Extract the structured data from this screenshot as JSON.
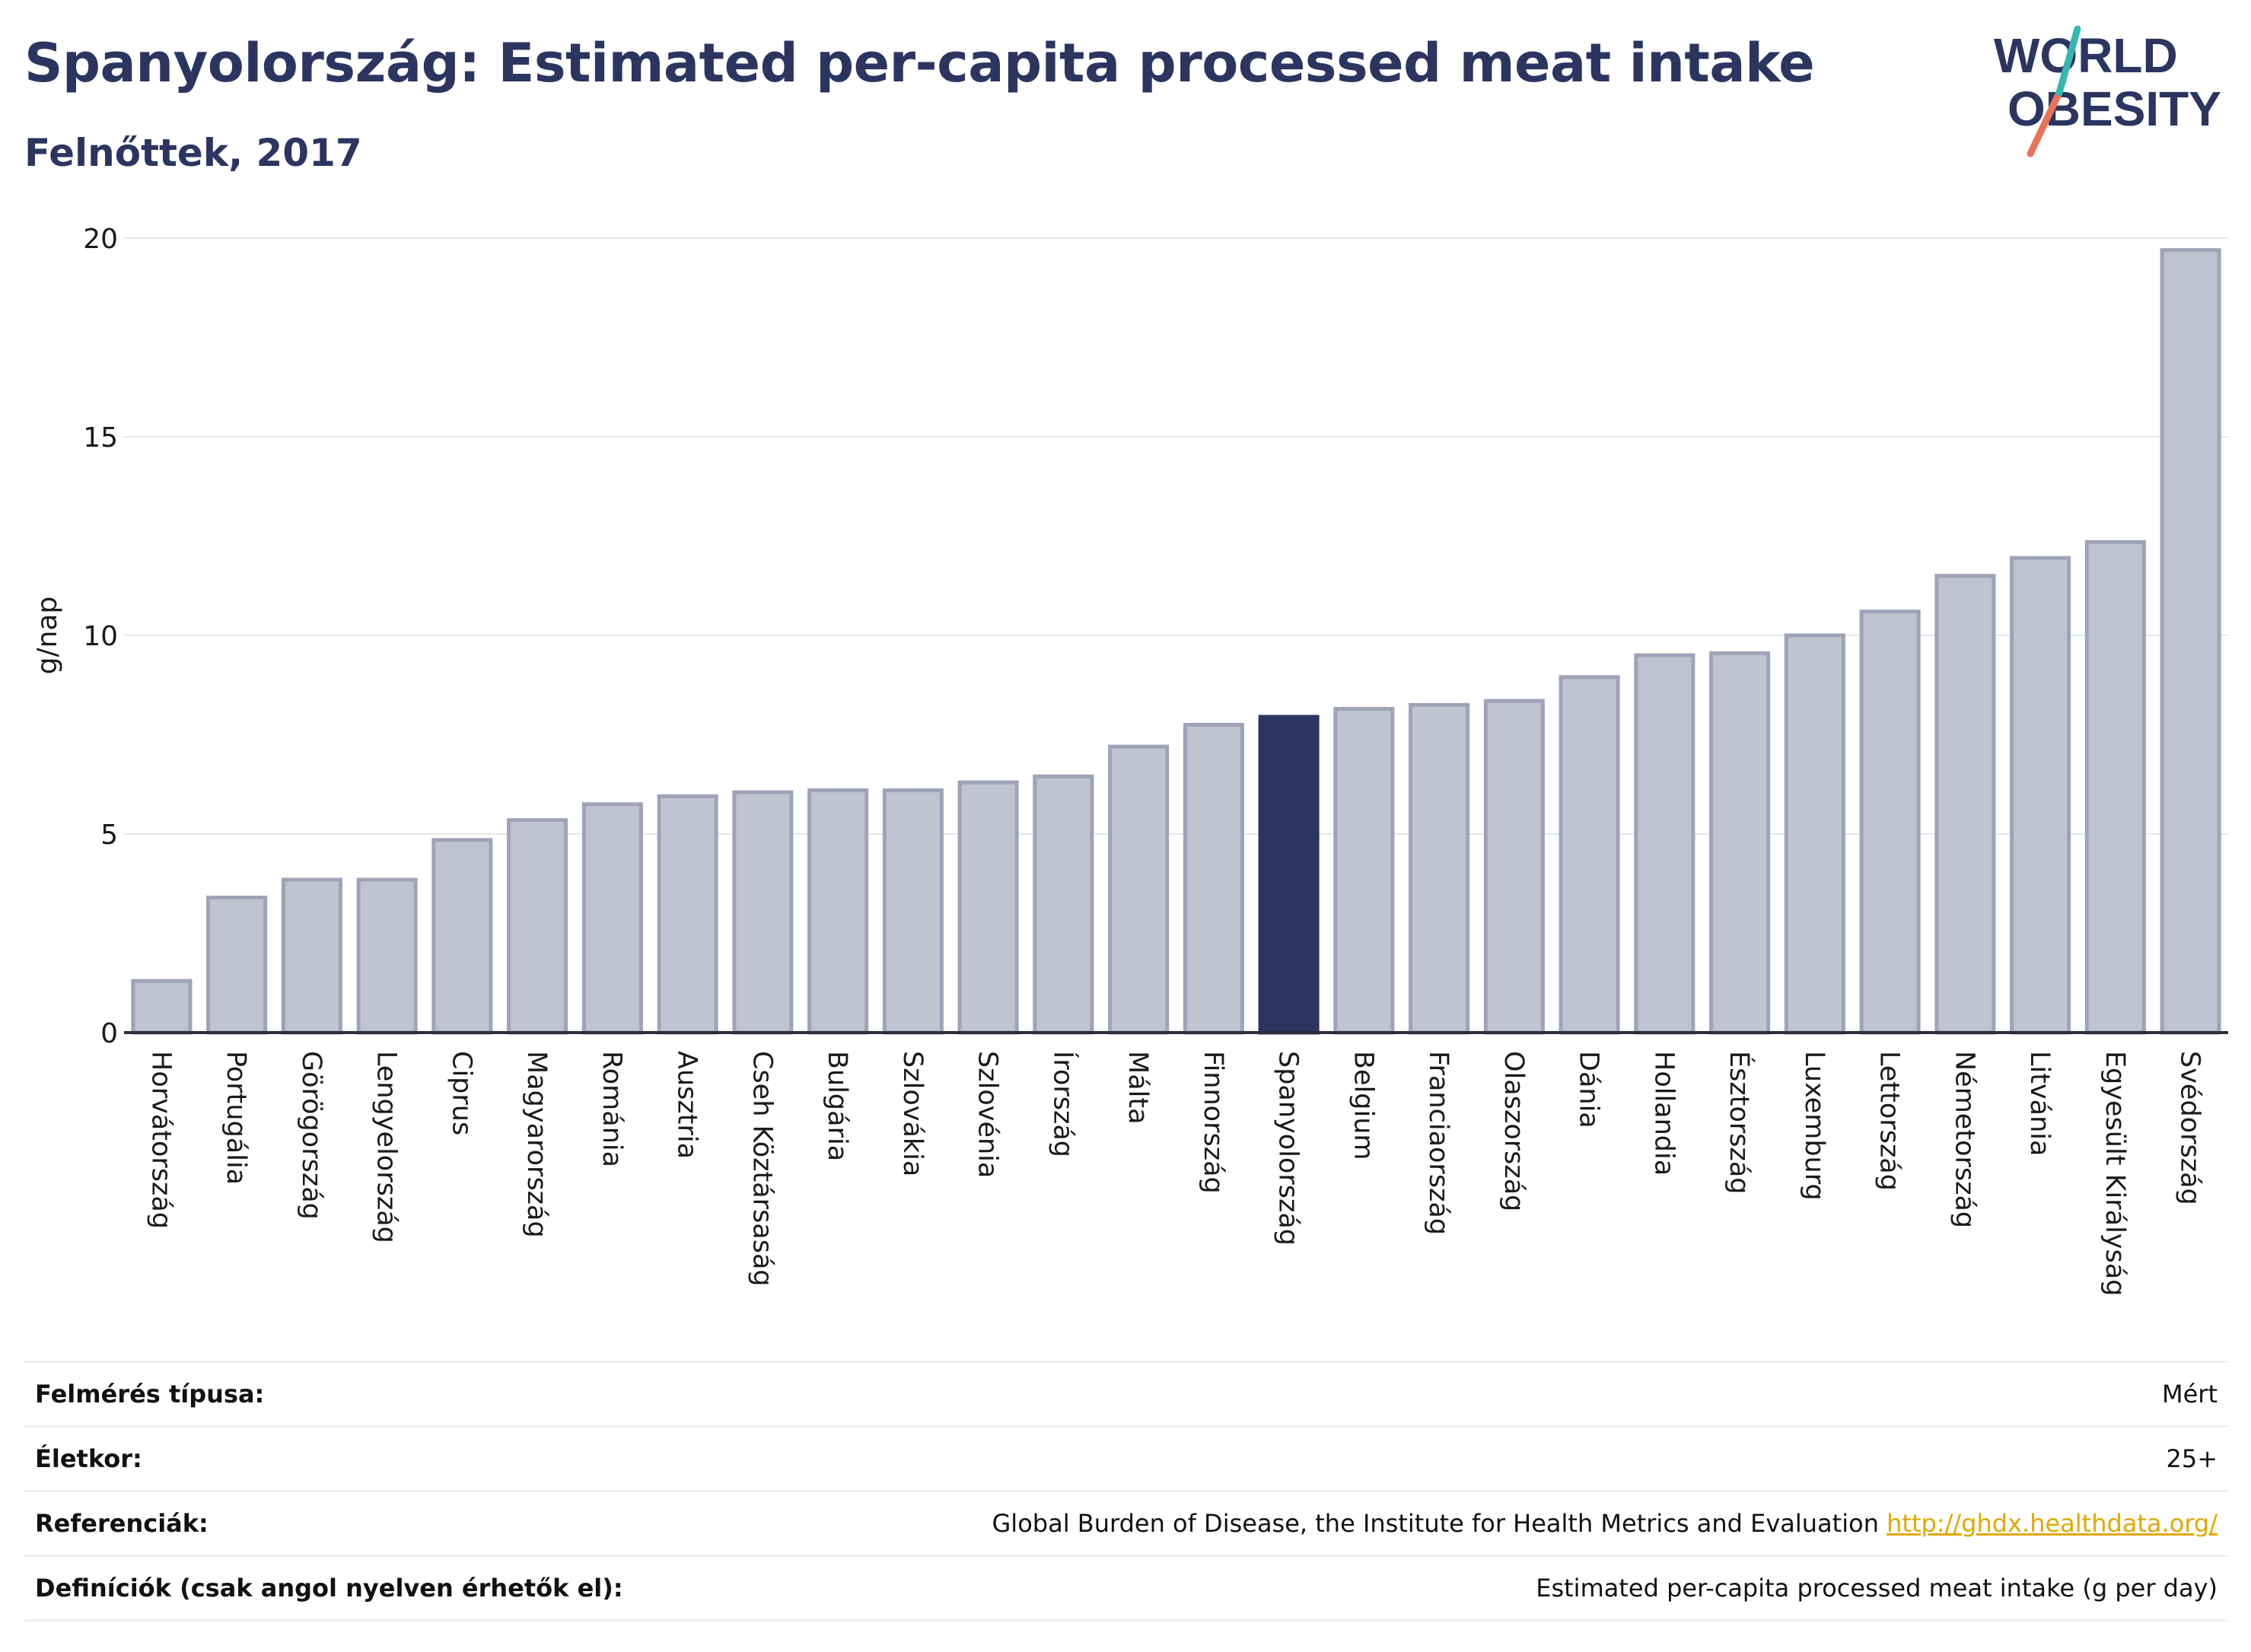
{
  "header": {
    "title": "Spanyolország: Estimated per-capita processed meat intake",
    "subtitle": "Felnőttek, 2017"
  },
  "logo": {
    "text": "WORLD OBESITY",
    "colors": {
      "text": "#2b3560",
      "slash_teal": "#36b6b0",
      "slash_coral": "#e8735a"
    }
  },
  "colors": {
    "bar": "#c0c3d0",
    "bar_border": "#9ea3b8",
    "highlight": "#2b3560",
    "grid": "#e6e7ec",
    "axis": "#2b2f3a"
  },
  "chart_data": {
    "type": "bar",
    "title": "Spanyolország: Estimated per-capita processed meat intake",
    "subtitle": "Felnőttek, 2017",
    "ylabel": "g/nap",
    "ylim": [
      0,
      20
    ],
    "yticks": [
      0,
      5,
      10,
      15,
      20
    ],
    "grid": true,
    "highlight": "Spanyolország",
    "categories": [
      "Horvátország",
      "Portugália",
      "Görögország",
      "Lengyelország",
      "Ciprus",
      "Magyarország",
      "Románia",
      "Ausztria",
      "Cseh Köztársaság",
      "Bulgária",
      "Szlovákia",
      "Szlovénia",
      "Írország",
      "Málta",
      "Finnország",
      "Spanyolország",
      "Belgium",
      "Franciaország",
      "Olaszország",
      "Dánia",
      "Hollandia",
      "Észtország",
      "Luxemburg",
      "Lettország",
      "Németország",
      "Litvánia",
      "Egyesült Királyság",
      "Svédország"
    ],
    "values": [
      1.3,
      3.4,
      3.85,
      3.85,
      4.85,
      5.35,
      5.75,
      5.95,
      6.05,
      6.1,
      6.1,
      6.3,
      6.45,
      7.2,
      7.75,
      7.95,
      8.15,
      8.25,
      8.35,
      8.95,
      9.5,
      9.55,
      10.0,
      10.6,
      11.5,
      11.95,
      12.35,
      19.7
    ]
  },
  "info": [
    {
      "label": "Felmérés típusa:",
      "value": "Mért"
    },
    {
      "label": "Életkor:",
      "value": "25+"
    },
    {
      "label": "Referenciák:",
      "value": "Global Burden of Disease, the Institute for Health Metrics and Evaluation",
      "link": "http://ghdx.healthdata.org/"
    },
    {
      "label": "Definíciók (csak angol nyelven érhetők el):",
      "value": "Estimated per-capita processed meat intake (g per day)"
    }
  ]
}
